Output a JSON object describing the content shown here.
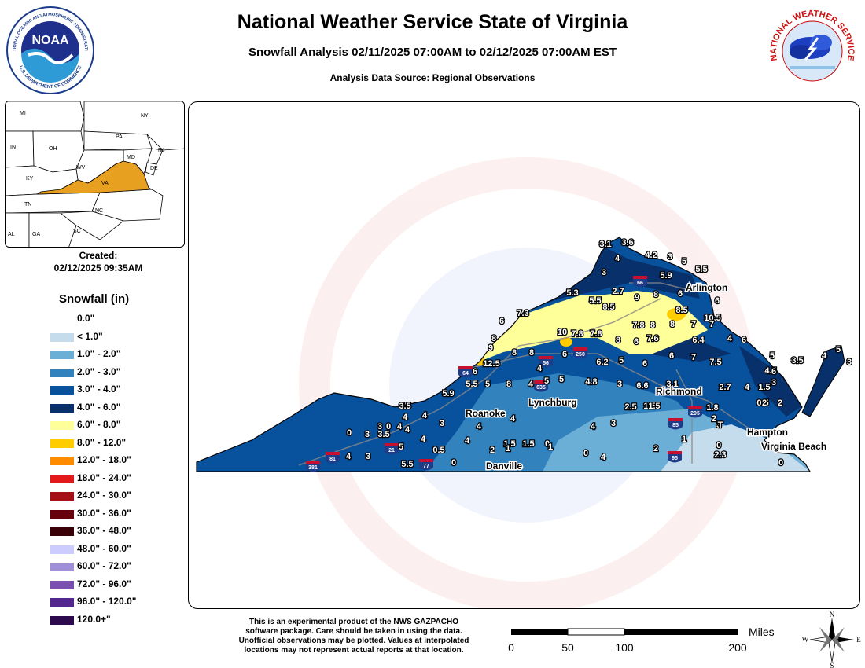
{
  "header": {
    "title": "National Weather Service State of Virginia",
    "subtitle": "Snowfall Analysis 02/11/2025 07:00AM to 02/12/2025 07:00AM EST",
    "source": "Analysis Data Source: Regional Observations"
  },
  "logos": {
    "noaa_text": "NOAA",
    "noaa_ring_text": "NATIONAL OCEANIC AND ATMOSPHERIC ADMINISTRATION",
    "noaa_ring_bottom": "U.S. DEPARTMENT OF COMMERCE",
    "nws_ring_text": "NATIONAL WEATHER SERVICE"
  },
  "inset": {
    "highlight_color": "#e8a020",
    "states": [
      "MI",
      "NY",
      "PA",
      "IN",
      "OH",
      "MD",
      "NJ",
      "DE",
      "WV",
      "KY",
      "VA",
      "TN",
      "NC",
      "AL",
      "GA",
      "SC"
    ]
  },
  "created": {
    "label": "Created:",
    "value": "02/12/2025 09:35AM"
  },
  "legend": {
    "title": "Snowfall (in)",
    "items": [
      {
        "label": "0.0\"",
        "color": ""
      },
      {
        "label": "< 1.0\"",
        "color": "#c5dcec"
      },
      {
        "label": "1.0\" - 2.0\"",
        "color": "#6baed6"
      },
      {
        "label": "2.0\" - 3.0\"",
        "color": "#3182bd"
      },
      {
        "label": "3.0\" - 4.0\"",
        "color": "#08519c"
      },
      {
        "label": "4.0\" - 6.0\"",
        "color": "#08306b"
      },
      {
        "label": "6.0\" - 8.0\"",
        "color": "#ffff99"
      },
      {
        "label": "8.0\" - 12.0\"",
        "color": "#ffcc00"
      },
      {
        "label": "12.0\" - 18.0\"",
        "color": "#ff8c00"
      },
      {
        "label": "18.0\" - 24.0\"",
        "color": "#e31a1c"
      },
      {
        "label": "24.0\" - 30.0\"",
        "color": "#a50f15"
      },
      {
        "label": "30.0\" - 36.0\"",
        "color": "#67000d"
      },
      {
        "label": "36.0\" - 48.0\"",
        "color": "#3a0008"
      },
      {
        "label": "48.0\" - 60.0\"",
        "color": "#ccccff"
      },
      {
        "label": "60.0\" - 72.0\"",
        "color": "#9e8fd6"
      },
      {
        "label": "72.0\" - 96.0\"",
        "color": "#7a4fb0"
      },
      {
        "label": "96.0\" - 120.0\"",
        "color": "#54278f"
      },
      {
        "label": "120.0+\"",
        "color": "#2d0a4e"
      }
    ]
  },
  "map": {
    "watermark_top": "NATIONAL WEATHER SERVICE",
    "watermark_bottom": "U.S. DEPARTMENT OF COMMERCE",
    "cities": [
      "Arlington",
      "Richmond",
      "Roanoke",
      "Lynchburg",
      "Hampton",
      "Virginia Beach",
      "Danville"
    ],
    "interstates": [
      "66",
      "250",
      "64",
      "56",
      "635",
      "295",
      "85",
      "95",
      "81",
      "381",
      "21",
      "77"
    ],
    "snowfall_labels": [
      "3.1",
      "3.6",
      "4",
      "4.2",
      "3",
      "5",
      "5.5",
      "3",
      "5.9",
      "5.3",
      "5.5",
      "2.7",
      "9",
      "8",
      "6",
      "8.5",
      "7.3",
      "6",
      "8.5",
      "10.5",
      "8",
      "7",
      "7",
      "6",
      "8",
      "10",
      "7.8",
      "7.8",
      "7.8",
      "8",
      "8",
      "6",
      "7.6",
      "6.4",
      "4",
      "6",
      "9",
      "8",
      "8",
      "6",
      "6.2",
      "5",
      "6",
      "6",
      "7",
      "7.5",
      "5",
      "3.5",
      "4",
      "5",
      "3",
      "12.5",
      "4",
      "6",
      "4.5",
      "6",
      "5.5",
      "5",
      "8",
      "4",
      "5",
      "5",
      "4.8",
      "3",
      "6.6",
      "3.1",
      "2.7",
      "4",
      "1.5",
      "3",
      "1.5",
      "5.9",
      "4",
      "2.5",
      "1.5",
      "0.5",
      "2",
      "2",
      "3.5",
      "4",
      "4",
      "3",
      "3",
      "0",
      "4",
      "4",
      "4",
      "4",
      "3",
      "1.8",
      "2",
      "0",
      "3",
      "3.5",
      "4",
      "4",
      "4",
      "1.5",
      "0",
      "3",
      "2",
      "1",
      "1.5",
      "1",
      "2",
      "1",
      "T",
      "0",
      "2.3",
      "4",
      "3",
      "5",
      "0.5",
      "0",
      "4",
      "5.5",
      "0",
      "0"
    ]
  },
  "disclaimer": [
    "This is an experimental product of the NWS GAZPACHO",
    "software package. Care should be taken in using the data.",
    "Unofficial observations may be plotted. Values at interpolated",
    "locations may not represent actual reports at that location."
  ],
  "scale": {
    "unit": "Miles",
    "ticks": [
      "0",
      "50",
      "100",
      "200"
    ]
  },
  "compass": {
    "n": "N",
    "s": "S",
    "e": "E",
    "w": "W"
  }
}
